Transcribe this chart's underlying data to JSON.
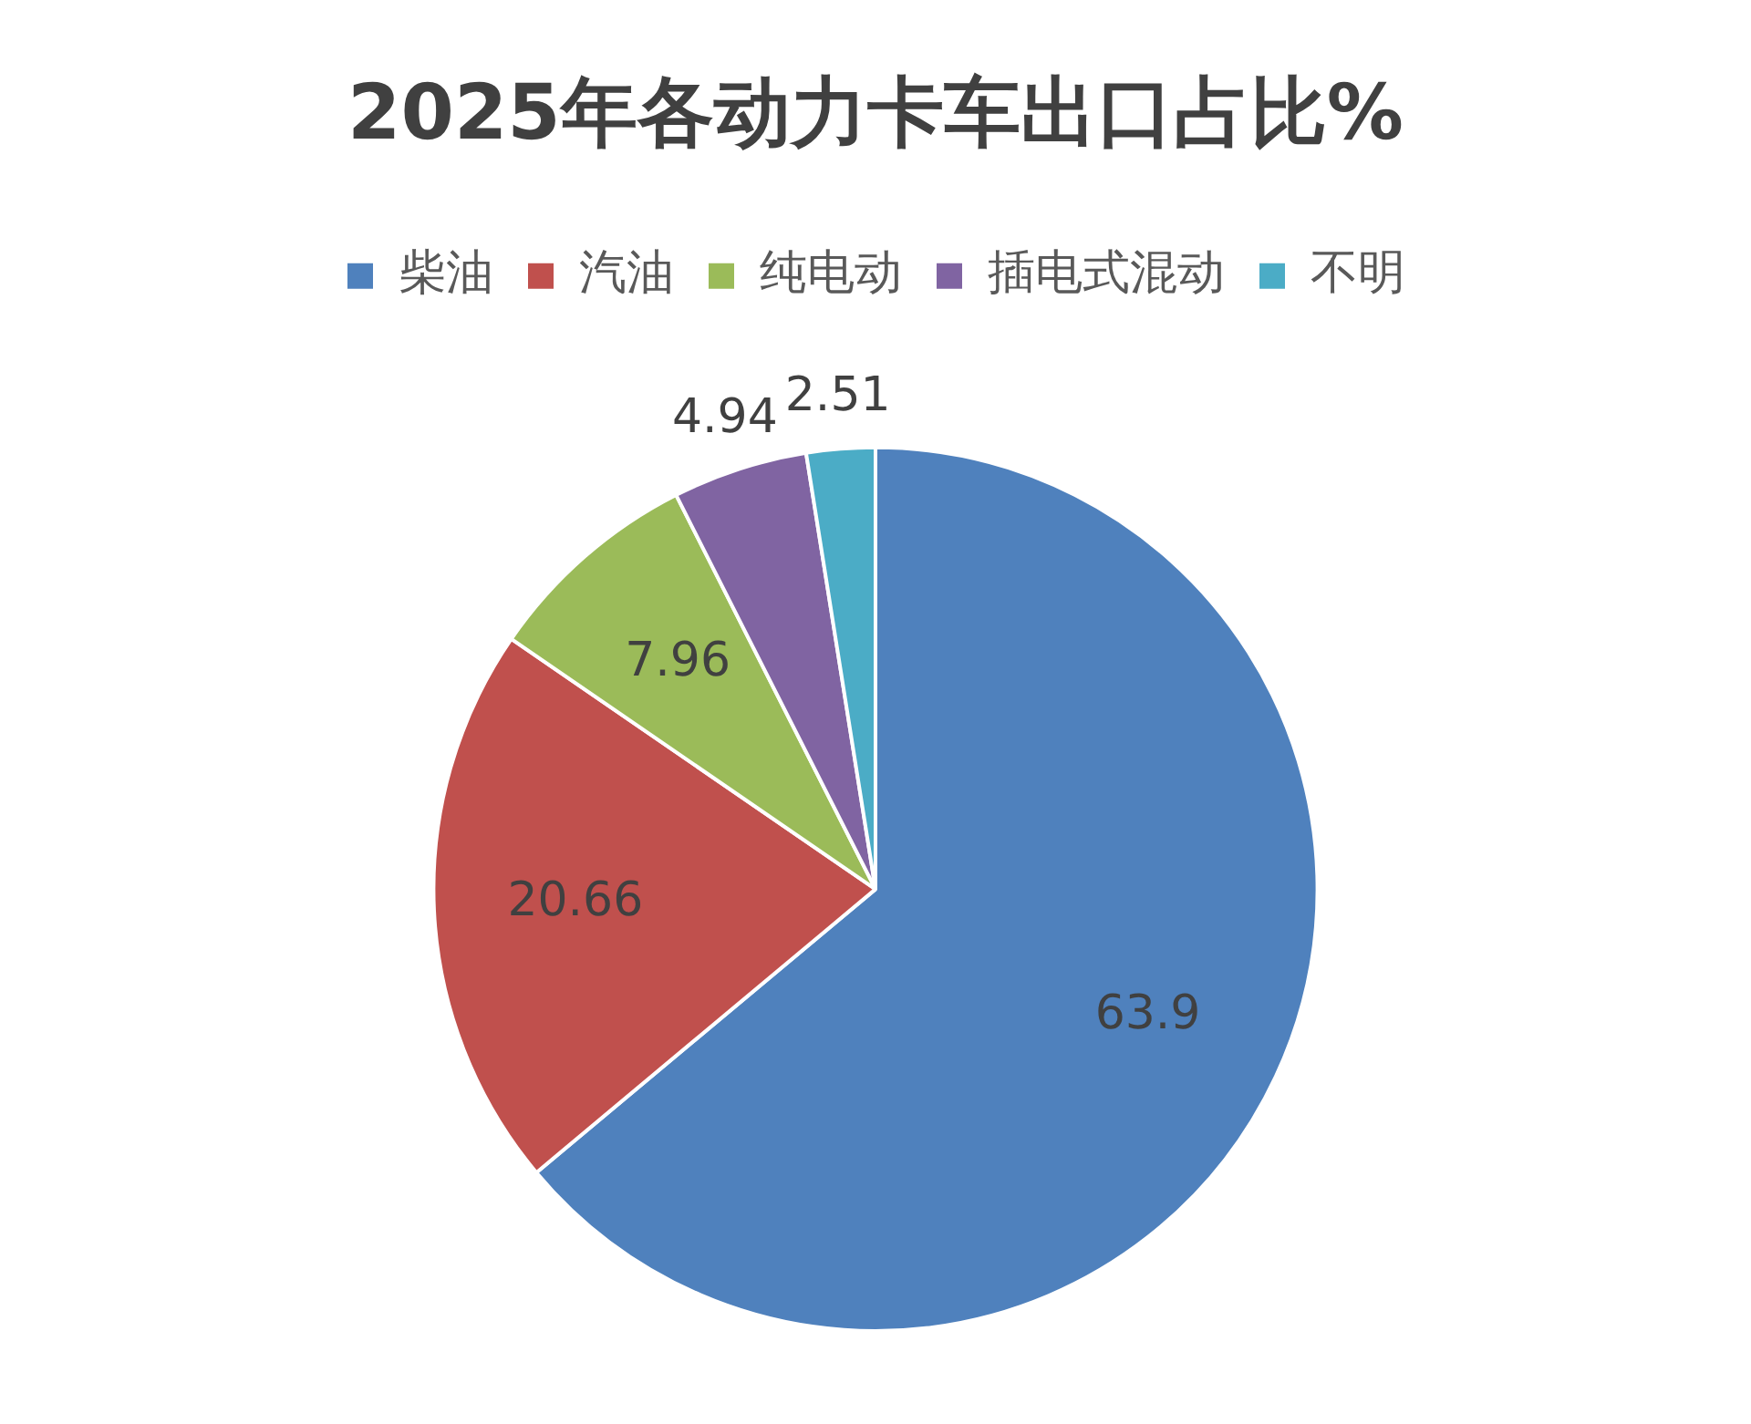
{
  "chart_data": {
    "type": "pie",
    "title": "2025年各动力卡车出口占比%",
    "categories": [
      "柴油",
      "汽油",
      "纯电动",
      "插电式混动",
      "不明"
    ],
    "values": [
      63.9,
      20.66,
      7.96,
      4.94,
      2.51
    ],
    "colors": [
      "#4f81bd",
      "#c0504d",
      "#9bbb59",
      "#8064a2",
      "#4bacc6"
    ],
    "data_labels": true,
    "legend": "top"
  }
}
